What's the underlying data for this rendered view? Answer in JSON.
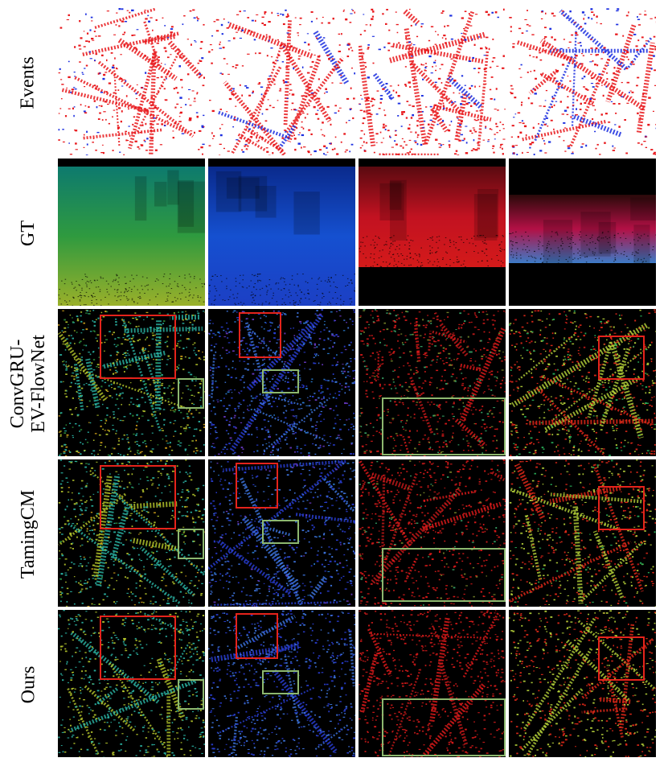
{
  "row_labels": {
    "events": "Events",
    "gt": "GT",
    "convgru_line1": "ConvGRU-",
    "convgru_line2": "EV-FlowNet",
    "taming": "TamingCM",
    "ours": "Ours"
  },
  "colors": {
    "highlight_red": "#e5231b",
    "highlight_green": "#8db86f",
    "event_positive": "#e8171b",
    "event_negative": "#1c2fe0",
    "flow_background": "#000000",
    "events_background": "#ffffff"
  }
}
